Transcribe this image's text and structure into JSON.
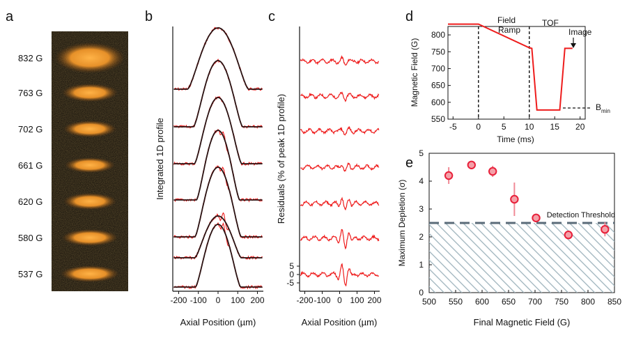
{
  "panels": {
    "a": "a",
    "b": "b",
    "c": "c",
    "d": "d",
    "e": "e"
  },
  "colors": {
    "fit": "#2a1212",
    "data": "#ee1c1c",
    "threshold": "#5a6b78",
    "hatch": "#9fb4bd",
    "cloud": "#f39a2c"
  },
  "panel_a": {
    "fields": [
      "832 G",
      "763 G",
      "702 G",
      "661 G",
      "620 G",
      "580 G",
      "537 G"
    ]
  },
  "chart_data": [
    {
      "type": "line",
      "panel": "b",
      "title": "",
      "xlabel": "Axial Position (µm)",
      "ylabel": "Integrated 1D profile",
      "xlim": [
        -230,
        230
      ],
      "xticks": [
        "-200",
        "-100",
        "0",
        "100",
        "200"
      ],
      "series_labels": [
        "832 G",
        "763 G",
        "702 G",
        "661 G",
        "620 G",
        "580 G",
        "537 G"
      ],
      "widths_um": [
        155,
        125,
        120,
        110,
        118,
        118,
        115
      ]
    },
    {
      "type": "line",
      "panel": "c",
      "title": "",
      "xlabel": "Axial Position (µm)",
      "ylabel": "Residuals (% of peak 1D profile)",
      "xlim": [
        -230,
        230
      ],
      "xticks": [
        "-200",
        "-100",
        "0",
        "100",
        "200"
      ],
      "yticks": [
        "5",
        "0",
        "-5"
      ],
      "series_labels": [
        "832 G",
        "763 G",
        "702 G",
        "661 G",
        "620 G",
        "580 G",
        "537 G"
      ],
      "amplitudes_pct": [
        1.8,
        1.5,
        1.5,
        2.5,
        4.5,
        6.5,
        6.5
      ]
    },
    {
      "type": "line",
      "panel": "d",
      "title": "",
      "xlabel": "Time (ms)",
      "ylabel": "Magnetic Field (G)",
      "xlim": [
        -6,
        21
      ],
      "ylim": [
        550,
        825
      ],
      "xticks": [
        "-5",
        "0",
        "5",
        "10",
        "15",
        "20"
      ],
      "yticks": [
        "550",
        "600",
        "650",
        "700",
        "750",
        "800"
      ],
      "x": [
        -6,
        0,
        10,
        10.5,
        11.5,
        16,
        17,
        18.5
      ],
      "y": [
        832,
        832,
        762,
        760,
        577,
        577,
        760,
        760
      ],
      "annotations": {
        "field_ramp": "Field\nRamp",
        "tof": "TOF",
        "image": "Image",
        "bmin": "B",
        "bmin_sub": "min"
      }
    },
    {
      "type": "scatter",
      "panel": "e",
      "title": "",
      "xlabel": "Final Magnetic Field (G)",
      "ylabel": "Maximum Depletion (σ)",
      "xlim": [
        500,
        850
      ],
      "ylim": [
        0,
        5
      ],
      "xticks": [
        "500",
        "550",
        "600",
        "650",
        "700",
        "750",
        "800",
        "850"
      ],
      "yticks": [
        "0",
        "1",
        "2",
        "3",
        "4",
        "5"
      ],
      "x": [
        537,
        580,
        620,
        661,
        702,
        763,
        832
      ],
      "y": [
        4.2,
        4.58,
        4.35,
        3.35,
        2.68,
        2.07,
        2.27
      ],
      "yerr": [
        0.3,
        0.1,
        0.2,
        0.6,
        0.15,
        0.15,
        0.25
      ],
      "threshold": 2.5,
      "threshold_label": "Detection Threshold"
    }
  ]
}
